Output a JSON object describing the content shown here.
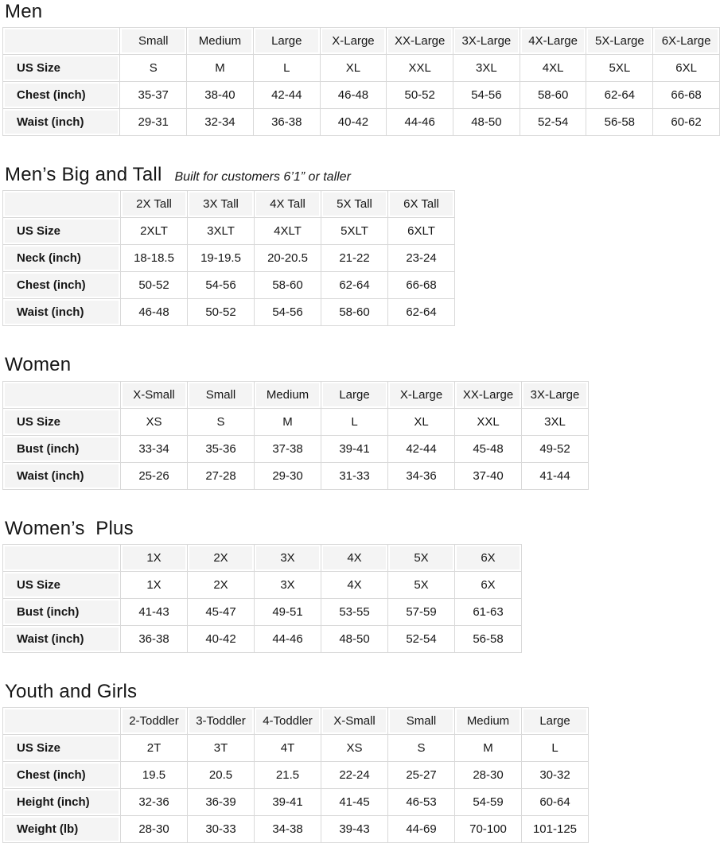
{
  "styles": {
    "text_color": "#161616",
    "border_color": "#d9d9d9",
    "header_cell_bg": "#f4f4f4",
    "header_cell_inset": "#ffffff"
  },
  "sections": [
    {
      "title": "Men",
      "subtitle": "",
      "columns": [
        "Small",
        "Medium",
        "Large",
        "X-Large",
        "XX-Large",
        "3X-Large",
        "4X-Large",
        "5X-Large",
        "6X-Large"
      ],
      "rows": [
        {
          "label": "US Size",
          "cells": [
            "S",
            "M",
            "L",
            "XL",
            "XXL",
            "3XL",
            "4XL",
            "5XL",
            "6XL"
          ]
        },
        {
          "label": "Chest (inch)",
          "cells": [
            "35-37",
            "38-40",
            "42-44",
            "46-48",
            "50-52",
            "54-56",
            "58-60",
            "62-64",
            "66-68"
          ]
        },
        {
          "label": "Waist (inch)",
          "cells": [
            "29-31",
            "32-34",
            "36-38",
            "40-42",
            "44-46",
            "48-50",
            "52-54",
            "56-58",
            "60-62"
          ]
        }
      ]
    },
    {
      "title": "Men’s Big and Tall",
      "subtitle": "Built for customers 6’1” or taller",
      "columns": [
        "2X Tall",
        "3X Tall",
        "4X Tall",
        "5X Tall",
        "6X Tall"
      ],
      "rows": [
        {
          "label": "US Size",
          "cells": [
            "2XLT",
            "3XLT",
            "4XLT",
            "5XLT",
            "6XLT"
          ]
        },
        {
          "label": "Neck (inch)",
          "cells": [
            "18-18.5",
            "19-19.5",
            "20-20.5",
            "21-22",
            "23-24"
          ]
        },
        {
          "label": "Chest (inch)",
          "cells": [
            "50-52",
            "54-56",
            "58-60",
            "62-64",
            "66-68"
          ]
        },
        {
          "label": "Waist (inch)",
          "cells": [
            "46-48",
            "50-52",
            "54-56",
            "58-60",
            "62-64"
          ]
        }
      ]
    },
    {
      "title": "Women",
      "subtitle": "",
      "columns": [
        "X-Small",
        "Small",
        "Medium",
        "Large",
        "X-Large",
        "XX-Large",
        "3X-Large"
      ],
      "rows": [
        {
          "label": "US Size",
          "cells": [
            "XS",
            "S",
            "M",
            "L",
            "XL",
            "XXL",
            "3XL"
          ]
        },
        {
          "label": "Bust (inch)",
          "cells": [
            "33-34",
            "35-36",
            "37-38",
            "39-41",
            "42-44",
            "45-48",
            "49-52"
          ]
        },
        {
          "label": "Waist (inch)",
          "cells": [
            "25-26",
            "27-28",
            "29-30",
            "31-33",
            "34-36",
            "37-40",
            "41-44"
          ]
        }
      ]
    },
    {
      "title": "Women’s  Plus",
      "subtitle": "",
      "columns": [
        "1X",
        "2X",
        "3X",
        "4X",
        "5X",
        "6X"
      ],
      "rows": [
        {
          "label": "US Size",
          "cells": [
            "1X",
            "2X",
            "3X",
            "4X",
            "5X",
            "6X"
          ]
        },
        {
          "label": "Bust (inch)",
          "cells": [
            "41-43",
            "45-47",
            "49-51",
            "53-55",
            "57-59",
            "61-63"
          ]
        },
        {
          "label": "Waist (inch)",
          "cells": [
            "36-38",
            "40-42",
            "44-46",
            "48-50",
            "52-54",
            "56-58"
          ]
        }
      ]
    },
    {
      "title": "Youth and Girls",
      "subtitle": "",
      "columns": [
        "2-Toddler",
        "3-Toddler",
        "4-Toddler",
        "X-Small",
        "Small",
        "Medium",
        "Large"
      ],
      "rows": [
        {
          "label": "US Size",
          "cells": [
            "2T",
            "3T",
            "4T",
            "XS",
            "S",
            "M",
            "L"
          ]
        },
        {
          "label": "Chest (inch)",
          "cells": [
            "19.5",
            "20.5",
            "21.5",
            "22-24",
            "25-27",
            "28-30",
            "30-32"
          ]
        },
        {
          "label": "Height (inch)",
          "cells": [
            "32-36",
            "36-39",
            "39-41",
            "41-45",
            "46-53",
            "54-59",
            "60-64"
          ]
        },
        {
          "label": "Weight (lb)",
          "cells": [
            "28-30",
            "30-33",
            "34-38",
            "39-43",
            "44-69",
            "70-100",
            "101-125"
          ]
        }
      ]
    }
  ]
}
